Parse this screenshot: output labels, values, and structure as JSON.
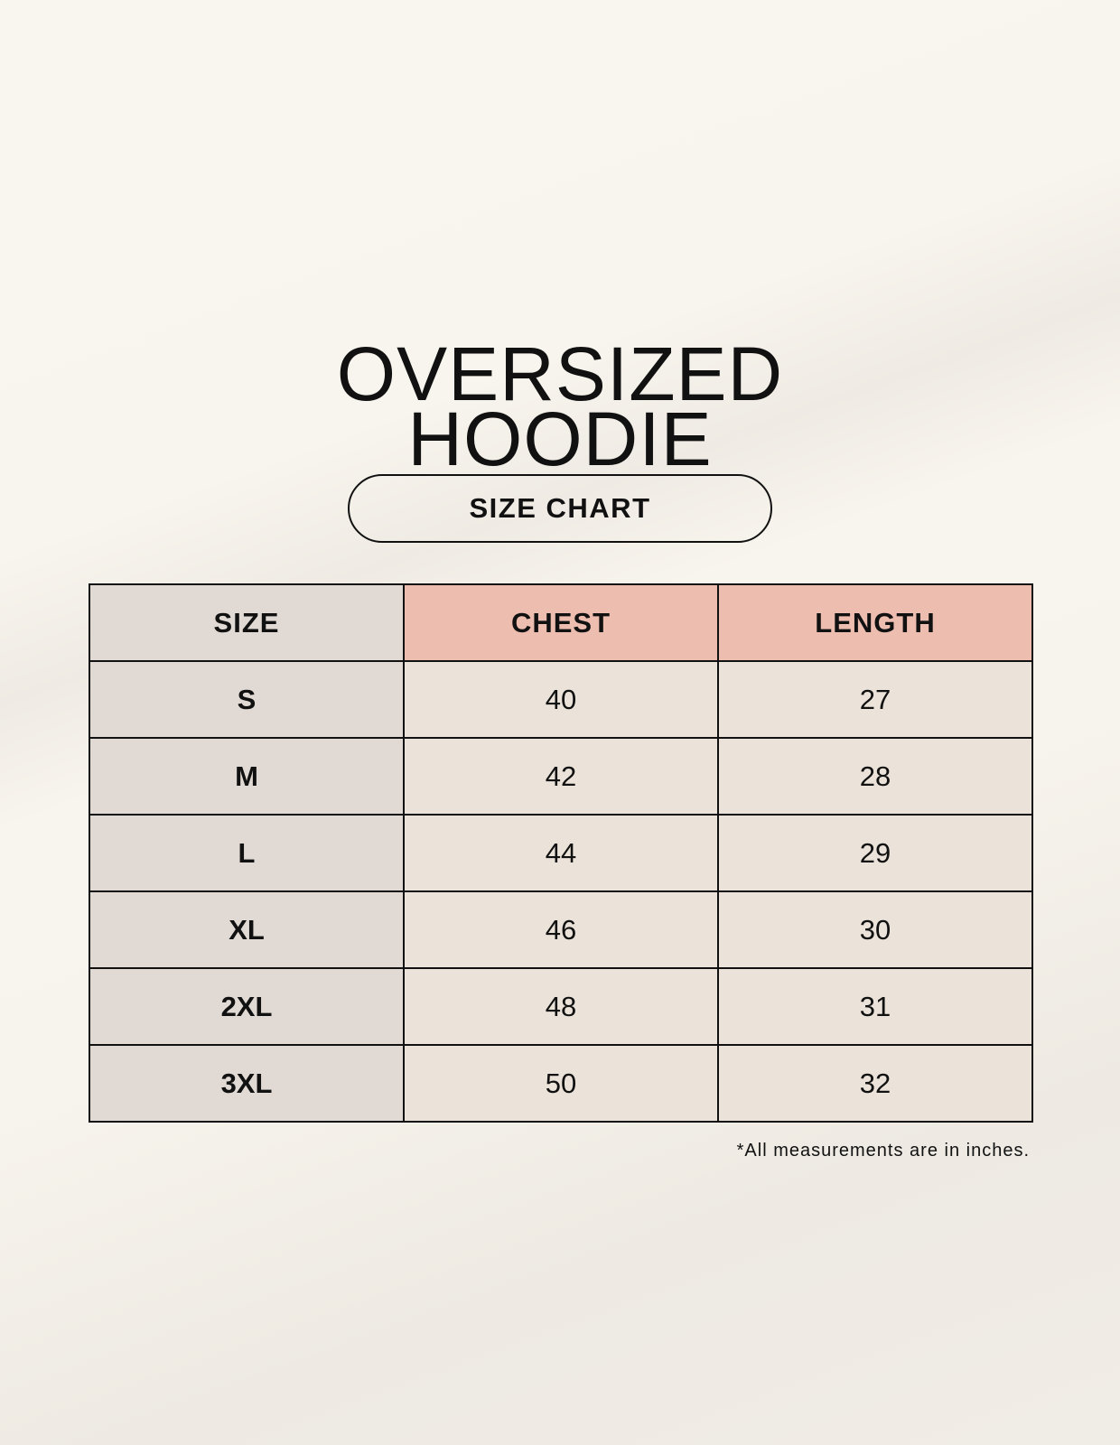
{
  "title": {
    "line1": "OVERSIZED",
    "line2": "HOODIE"
  },
  "subtitle": "SIZE CHART",
  "table": {
    "headers": [
      "SIZE",
      "CHEST",
      "LENGTH"
    ],
    "rows": [
      {
        "size": "S",
        "chest": "40",
        "length": "27"
      },
      {
        "size": "M",
        "chest": "42",
        "length": "28"
      },
      {
        "size": "L",
        "chest": "44",
        "length": "29"
      },
      {
        "size": "XL",
        "chest": "46",
        "length": "30"
      },
      {
        "size": "2XL",
        "chest": "48",
        "length": "31"
      },
      {
        "size": "3XL",
        "chest": "50",
        "length": "32"
      }
    ]
  },
  "footnote": "*All measurements are in inches.",
  "colors": {
    "header_accent": "#edbdb0",
    "size_column": "#e1d9d3",
    "cell": "#ebe3d9"
  }
}
